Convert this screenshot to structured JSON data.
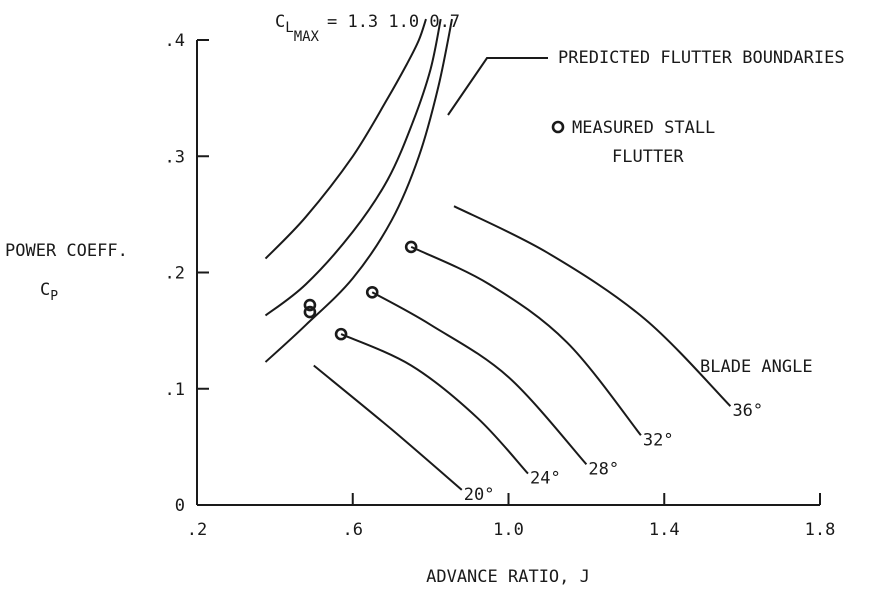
{
  "chart_data": {
    "type": "line",
    "xlabel": "ADVANCE RATIO, J",
    "ylabel": "POWER COEFF.",
    "ylabel_symbol": "C",
    "ylabel_symbol_sub": "P",
    "xlim": [
      0.2,
      1.8
    ],
    "ylim": [
      0,
      0.4
    ],
    "x_ticks": [
      {
        "value": 0.2,
        "label": ".2"
      },
      {
        "value": 0.6,
        "label": ".6"
      },
      {
        "value": 1.0,
        "label": "1.0"
      },
      {
        "value": 1.4,
        "label": "1.4"
      },
      {
        "value": 1.8,
        "label": "1.8"
      }
    ],
    "y_ticks": [
      {
        "value": 0,
        "label": "0"
      },
      {
        "value": 0.1,
        "label": ".1"
      },
      {
        "value": 0.2,
        "label": ".2"
      },
      {
        "value": 0.3,
        "label": ".3"
      },
      {
        "value": 0.4,
        "label": ".4"
      }
    ],
    "grid": false,
    "flutter_boundaries": {
      "label": "PREDICTED FLUTTER BOUNDARIES",
      "clmax_prefix": "C",
      "clmax_sub": "L",
      "clmax_subsub": "MAX",
      "clmax_values_text": "= 1.3 1.0 0.7",
      "series": [
        {
          "clmax": "1.3",
          "x": [
            0.376,
            0.48,
            0.6,
            0.69,
            0.74,
            0.77,
            0.788
          ],
          "y": [
            0.212,
            0.248,
            0.3,
            0.35,
            0.38,
            0.4,
            0.418
          ]
        },
        {
          "clmax": "1.0",
          "x": [
            0.376,
            0.48,
            0.6,
            0.69,
            0.755,
            0.8,
            0.826
          ],
          "y": [
            0.163,
            0.19,
            0.235,
            0.28,
            0.33,
            0.375,
            0.418
          ]
        },
        {
          "clmax": "0.7",
          "x": [
            0.376,
            0.48,
            0.6,
            0.7,
            0.77,
            0.82,
            0.855
          ],
          "y": [
            0.123,
            0.155,
            0.195,
            0.245,
            0.3,
            0.36,
            0.418
          ]
        }
      ]
    },
    "blade_angle_label": "BLADE ANGLE",
    "blade_angles": [
      {
        "label": "20°",
        "x": [
          0.5,
          0.7,
          0.88
        ],
        "y": [
          0.12,
          0.065,
          0.013
        ]
      },
      {
        "label": "24°",
        "x": [
          0.57,
          0.75,
          0.92,
          1.05
        ],
        "y": [
          0.147,
          0.12,
          0.075,
          0.027
        ]
      },
      {
        "label": "28°",
        "x": [
          0.65,
          0.8,
          1.0,
          1.2
        ],
        "y": [
          0.183,
          0.155,
          0.11,
          0.035
        ]
      },
      {
        "label": "32°",
        "x": [
          0.75,
          0.95,
          1.15,
          1.34
        ],
        "y": [
          0.222,
          0.19,
          0.14,
          0.06
        ]
      },
      {
        "label": "36°",
        "x": [
          0.86,
          1.1,
          1.35,
          1.57
        ],
        "y": [
          0.257,
          0.217,
          0.16,
          0.085
        ]
      }
    ],
    "measured_stall_flutter": {
      "label_line1": "MEASURED STALL",
      "label_line2": "FLUTTER",
      "points": [
        {
          "x": 0.49,
          "y": 0.172
        },
        {
          "x": 0.49,
          "y": 0.166
        },
        {
          "x": 0.57,
          "y": 0.147
        },
        {
          "x": 0.65,
          "y": 0.183
        },
        {
          "x": 0.75,
          "y": 0.222
        }
      ]
    }
  }
}
